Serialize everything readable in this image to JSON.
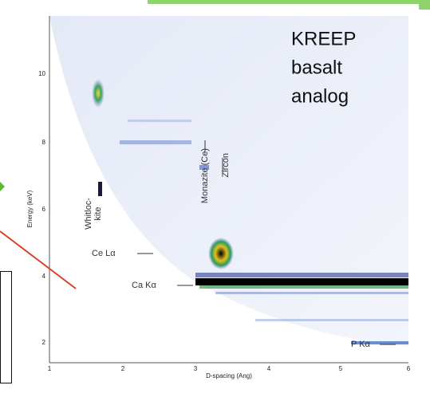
{
  "figure": {
    "title_lines": [
      "KREEP",
      "basalt",
      "analog"
    ],
    "x_label": "D-spacing (Ang)",
    "y_label": "Energy (keV)",
    "x_ticks": [
      "1",
      "2",
      "3",
      "4",
      "5",
      "6"
    ],
    "y_ticks": [
      "10",
      "8",
      "6",
      "4",
      "2"
    ],
    "annotations": {
      "monazite": "Monazite (Ce)",
      "zircon": "Zircon",
      "whitlockite_1": "Whitloc-",
      "whitlockite_2": "kite",
      "ce": "Ce Lα",
      "ca": "Ca Kα",
      "p": "P Kα"
    }
  }
}
